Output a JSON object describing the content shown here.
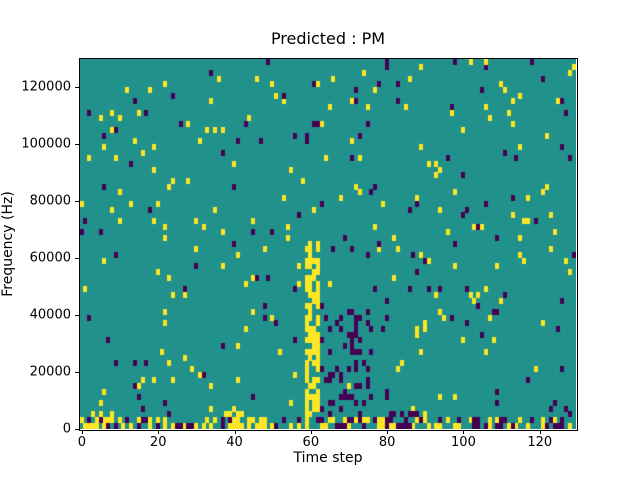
{
  "chart_data": {
    "type": "heatmap",
    "title": "Predicted : PM",
    "xlabel": "Time step",
    "ylabel": "Frequency (Hz)",
    "x_range": [
      -0.5,
      129.5
    ],
    "y_range": [
      0,
      130000
    ],
    "grid_cols": 130,
    "grid_rows": 65,
    "hz_per_row": 2000,
    "x_ticks": [
      {
        "value": 0,
        "label": "0"
      },
      {
        "value": 20,
        "label": "20"
      },
      {
        "value": 40,
        "label": "40"
      },
      {
        "value": 60,
        "label": "60"
      },
      {
        "value": 80,
        "label": "80"
      },
      {
        "value": 100,
        "label": "100"
      },
      {
        "value": 120,
        "label": "120"
      }
    ],
    "y_ticks": [
      {
        "value": 0,
        "label": "0"
      },
      {
        "value": 20000,
        "label": "20000"
      },
      {
        "value": 40000,
        "label": "40000"
      },
      {
        "value": 60000,
        "label": "60000"
      },
      {
        "value": 80000,
        "label": "80000"
      },
      {
        "value": 100000,
        "label": "100000"
      },
      {
        "value": 120000,
        "label": "120000"
      }
    ],
    "legend": "none",
    "grid": "off",
    "colors": {
      "background_cell": "#21918c",
      "high": "#fde725",
      "low": "#440154",
      "axes": "#000000",
      "figure_background": "#ffffff"
    },
    "noise": {
      "seed": 1337,
      "yellow_density": 0.022,
      "dark_density": 0.016
    },
    "features": [
      {
        "name": "bottom-band-yellow",
        "x": [
          0,
          130
        ],
        "y_hz": [
          0,
          4000
        ],
        "color": "high",
        "density": 0.35
      },
      {
        "name": "bottom-band-dark",
        "x": [
          0,
          130
        ],
        "y_hz": [
          0,
          4000
        ],
        "color": "low",
        "density": 0.18
      },
      {
        "name": "yellow-streak-x60",
        "x": [
          59,
          63
        ],
        "y_hz": [
          0,
          66000
        ],
        "color": "high",
        "density": 0.6
      },
      {
        "name": "dark-cluster-x63-77",
        "x": [
          63,
          77
        ],
        "y_hz": [
          0,
          42000
        ],
        "color": "low",
        "density": 0.2
      },
      {
        "name": "dark-bottom-x80s",
        "x": [
          80,
          89
        ],
        "y_hz": [
          0,
          6000
        ],
        "color": "low",
        "density": 0.45
      },
      {
        "name": "yellow-bottom-x40s",
        "x": [
          38,
          48
        ],
        "y_hz": [
          0,
          6000
        ],
        "color": "high",
        "density": 0.35
      },
      {
        "name": "dark-bottom-right",
        "x": [
          103,
          112
        ],
        "y_hz": [
          0,
          4000
        ],
        "color": "low",
        "density": 0.35
      },
      {
        "name": "yellow-bottom-left",
        "x": [
          2,
          12
        ],
        "y_hz": [
          0,
          6000
        ],
        "color": "high",
        "density": 0.3
      }
    ]
  }
}
